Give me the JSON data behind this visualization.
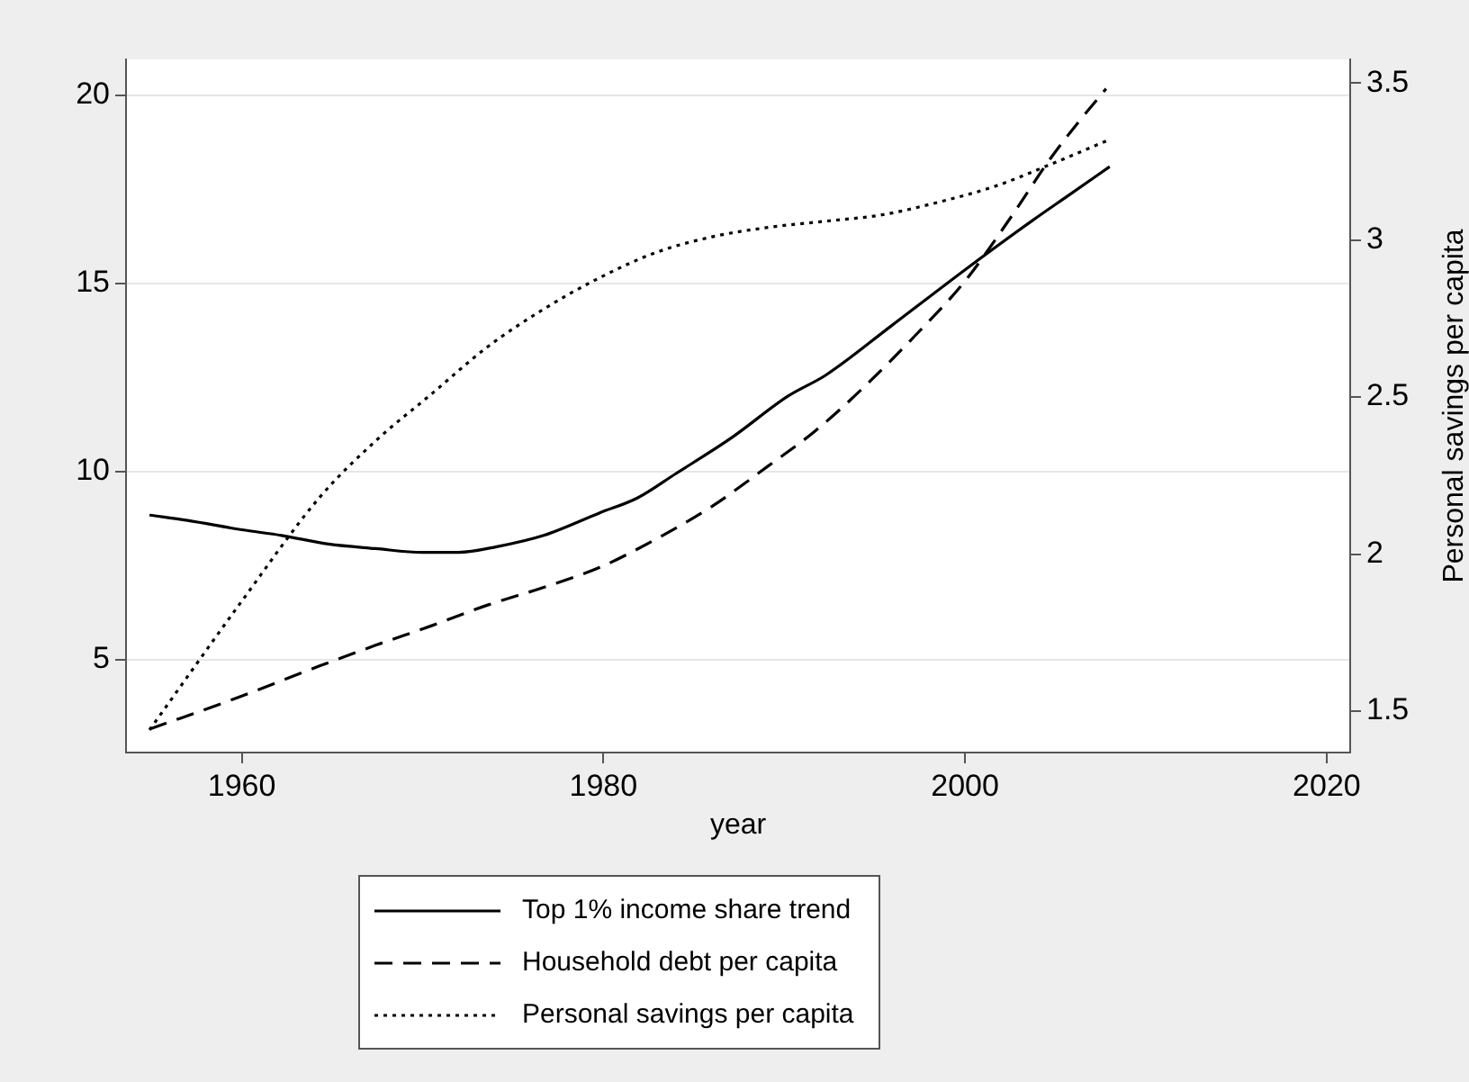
{
  "chart_data": {
    "type": "line",
    "xlabel": "year",
    "y2label": "Personal savings per capita",
    "xlim": [
      1953.6,
      2021.3
    ],
    "xticks": [
      1960,
      1980,
      2000,
      2020
    ],
    "ylim": [
      2.53,
      20.95
    ],
    "yticks": [
      5,
      10,
      15,
      20
    ],
    "y2lim": [
      1.368,
      3.575
    ],
    "y2ticks": [
      1.5,
      2,
      2.5,
      3,
      3.5
    ],
    "grid": "y",
    "legend": "bottom",
    "marker": "none",
    "series": [
      {
        "name": "Top 1% income share trend",
        "color": "#000000",
        "line_style": "solid",
        "x": [
          1954.9,
          1957,
          1960,
          1962.2,
          1964.8,
          1967.4,
          1970,
          1972,
          1974.1,
          1976.7,
          1979.8,
          1981.9,
          1984,
          1987.1,
          1990.2,
          1992.3,
          1995.9,
          2000,
          2003.7,
          2005.7,
          2008
        ],
        "values": [
          8.84,
          8.7,
          8.45,
          8.3,
          8.07,
          7.95,
          7.85,
          7.85,
          8.0,
          8.3,
          8.9,
          9.3,
          9.94,
          10.9,
          12.0,
          12.56,
          13.86,
          15.36,
          16.66,
          17.33,
          18.1
        ]
      },
      {
        "name": "Household debt per capita",
        "color": "#000000",
        "line_style": "dashed",
        "x": [
          1954.9,
          1960,
          1964.3,
          1967.4,
          1970.5,
          1973.6,
          1976.7,
          1979.8,
          1982.9,
          1986,
          1989.1,
          1991.7,
          1994.3,
          1997.4,
          2000,
          2002.6,
          2004.7,
          2006.3,
          2007.8
        ],
        "values": [
          3.15,
          4.03,
          4.83,
          5.38,
          5.9,
          6.45,
          6.92,
          7.45,
          8.2,
          9.07,
          10.14,
          11.07,
          12.19,
          13.69,
          15.06,
          16.8,
          18.3,
          19.3,
          20.17
        ]
      },
      {
        "name": "Personal savings per capita",
        "color": "#000000",
        "line_style": "dotted",
        "axis": "y2",
        "x": [
          1954.9,
          1960,
          1964.3,
          1967.4,
          1970.5,
          1973.6,
          1976.7,
          1979.8,
          1982.9,
          1986,
          1989.1,
          1992.3,
          1995.4,
          1998.5,
          2001.6,
          2004.7,
          2008
        ],
        "values": [
          1.44,
          1.85,
          2.18,
          2.36,
          2.51,
          2.66,
          2.78,
          2.88,
          2.96,
          3.01,
          3.04,
          3.06,
          3.08,
          3.12,
          3.17,
          3.24,
          3.32
        ]
      }
    ]
  }
}
